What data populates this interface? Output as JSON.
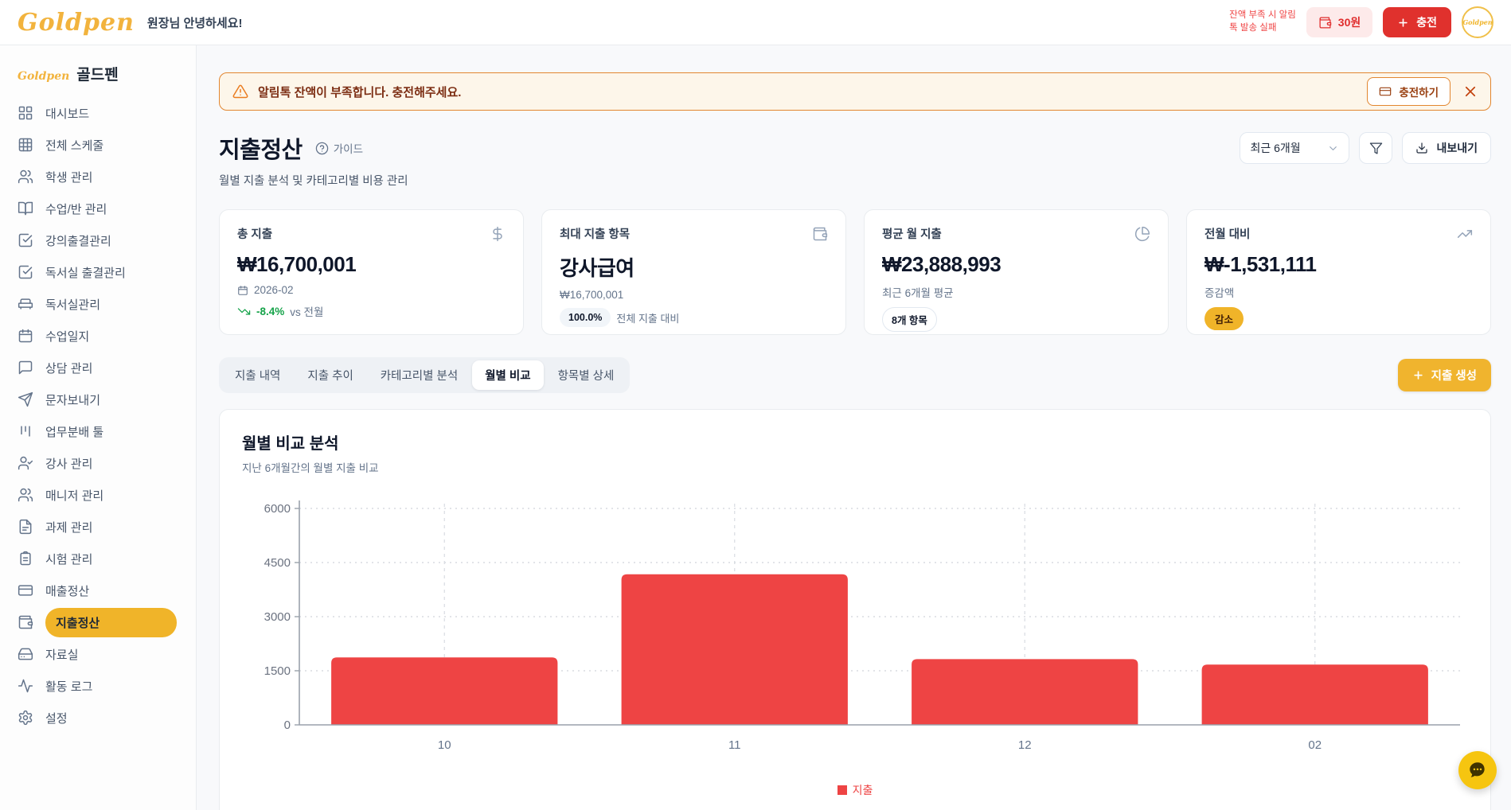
{
  "header": {
    "logo": "Goldpen",
    "greeting": "원장님 안녕하세요!",
    "notice_line1": "잔액 부족 시 알림",
    "notice_line2": "톡 발송 실패",
    "balance": "30원",
    "charge_label": "충전",
    "avatar_text": "Goldpen"
  },
  "sidebar": {
    "brand_logo": "Goldpen",
    "brand_name": "골드펜",
    "items": [
      {
        "label": "대시보드",
        "icon": "grid",
        "active": false
      },
      {
        "label": "전체 스케줄",
        "icon": "table",
        "active": false
      },
      {
        "label": "학생 관리",
        "icon": "users",
        "active": false
      },
      {
        "label": "수업/반 관리",
        "icon": "book",
        "active": false
      },
      {
        "label": "강의출결관리",
        "icon": "check-square",
        "active": false
      },
      {
        "label": "독서실 출결관리",
        "icon": "check-square",
        "active": false
      },
      {
        "label": "독서실관리",
        "icon": "sofa",
        "active": false
      },
      {
        "label": "수업일지",
        "icon": "calendar",
        "active": false
      },
      {
        "label": "상담 관리",
        "icon": "chat",
        "active": false
      },
      {
        "label": "문자보내기",
        "icon": "send",
        "active": false
      },
      {
        "label": "업무분배 툴",
        "icon": "kanban",
        "active": false
      },
      {
        "label": "강사 관리",
        "icon": "user-check",
        "active": false
      },
      {
        "label": "매니저 관리",
        "icon": "users",
        "active": false
      },
      {
        "label": "과제 관리",
        "icon": "file",
        "active": false
      },
      {
        "label": "시험 관리",
        "icon": "clipboard",
        "active": false
      },
      {
        "label": "매출정산",
        "icon": "card",
        "active": false
      },
      {
        "label": "지출정산",
        "icon": "wallet",
        "active": true
      },
      {
        "label": "자료실",
        "icon": "drive",
        "active": false
      },
      {
        "label": "활동 로그",
        "icon": "activity",
        "active": false
      },
      {
        "label": "설정",
        "icon": "gear",
        "active": false
      }
    ]
  },
  "alert": {
    "message": "알림톡 잔액이 부족합니다. 충전해주세요.",
    "action": "충전하기"
  },
  "page": {
    "title": "지출정산",
    "guide": "가이드",
    "subtitle": "월별 지출 분석 및 카테고리별 비용 관리"
  },
  "controls": {
    "period": "최근 6개월",
    "export": "내보내기"
  },
  "cards": [
    {
      "label": "총 지출",
      "icon": "dollar",
      "value": "₩16,700,001",
      "meta": "2026-02",
      "trend_value": "-8.4%",
      "trend_suffix": "vs 전월"
    },
    {
      "label": "최대 지출 항목",
      "icon": "wallet",
      "value": "강사급여",
      "meta": "₩16,700,001",
      "badge": "100.0%",
      "badge_suffix": "전체 지출 대비"
    },
    {
      "label": "평균 월 지출",
      "icon": "pie",
      "value": "₩23,888,993",
      "meta": "최근 6개월 평균",
      "badge": "8개 항목"
    },
    {
      "label": "전월 대비",
      "icon": "trend-up",
      "value": "₩-1,531,111",
      "meta": "증감액",
      "badge": "감소"
    }
  ],
  "tabs": {
    "items": [
      "지출 내역",
      "지출 추이",
      "카테고리별 분석",
      "월별 비교",
      "항목별 상세"
    ],
    "active_index": 3,
    "create_label": "지출 생성"
  },
  "chart_data": {
    "type": "bar",
    "title": "월별 비교 분석",
    "subtitle": "지난 6개월간의 월별 지출 비교",
    "categories": [
      "10",
      "11",
      "12",
      "02"
    ],
    "series": [
      {
        "name": "지출",
        "values": [
          1870,
          4175,
          1823,
          1670
        ],
        "color": "#ee4444"
      }
    ],
    "xlabel": "",
    "ylabel": "",
    "ylim": [
      0,
      6000
    ],
    "yticks": [
      0,
      1500,
      3000,
      4500,
      6000
    ],
    "grid": true,
    "legend_position": "bottom"
  },
  "colors": {
    "accent_gold": "#f0b429",
    "danger_red": "#e0312d",
    "bar_red": "#ee4444",
    "positive_green": "#16a34a",
    "alert_border": "#e2862f",
    "alert_bg": "#fdf6ea"
  }
}
